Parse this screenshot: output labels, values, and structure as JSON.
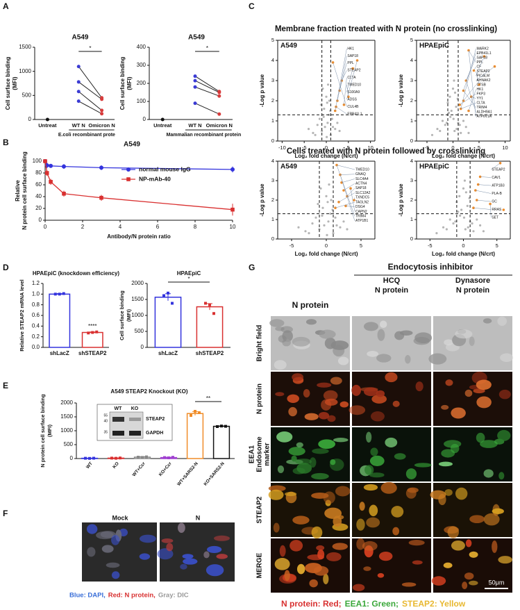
{
  "panel_labels": [
    "A",
    "B",
    "C",
    "D",
    "E",
    "F",
    "G"
  ],
  "panel_a": {
    "charts": [
      {
        "title": "A549",
        "y_label": [
          "Cell surface binding",
          "(MFI)"
        ],
        "ylim": [
          0,
          1500
        ],
        "yticks": [
          0,
          500,
          1000,
          1500
        ],
        "categories": [
          "Untreat",
          "WT N",
          "Omicron N"
        ],
        "colors": [
          "#111111",
          "#3b3bd4",
          "#d83c3c"
        ],
        "untreated": 0,
        "wt": [
          1100,
          780,
          580,
          380
        ],
        "omicron": [
          450,
          420,
          190,
          120
        ],
        "significance": "*",
        "group_label": "E.coli recombinant prote"
      },
      {
        "title": "A549",
        "y_label": [
          "Cell surface binding",
          "(MFI)"
        ],
        "ylim": [
          0,
          400
        ],
        "yticks": [
          0,
          100,
          200,
          300,
          400
        ],
        "categories": [
          "Untreat",
          "WT N",
          "Omicron N"
        ],
        "colors": [
          "#111111",
          "#3b3bd4",
          "#d83c3c"
        ],
        "untreated": 0,
        "wt": [
          240,
          215,
          180,
          90
        ],
        "omicron": [
          155,
          150,
          130,
          30
        ],
        "significance": "*",
        "group_label": "Mammalian recombinant protein"
      }
    ]
  },
  "panel_b": {
    "title": "A549",
    "y_label": [
      "Relative",
      "N protein cell surface binding"
    ],
    "x_label": "Antibody/N protein ratio",
    "xlim": [
      0,
      10
    ],
    "xticks": [
      0,
      2,
      4,
      6,
      8,
      10
    ],
    "ylim": [
      0,
      100
    ],
    "yticks": [
      0,
      20,
      40,
      60,
      80,
      100
    ],
    "x": [
      0,
      0.1,
      0.3,
      1,
      3,
      10
    ],
    "series": [
      {
        "name": "normal mouse IgG",
        "color": "#3333dd",
        "values": [
          100,
          93,
          92,
          91,
          89,
          86
        ],
        "errors": [
          3,
          5,
          3,
          4,
          4,
          5
        ]
      },
      {
        "name": "NP-mAb-40",
        "color": "#d93030",
        "values": [
          100,
          80,
          65,
          45,
          38,
          18
        ],
        "errors": [
          3,
          5,
          5,
          5,
          5,
          10
        ]
      }
    ]
  },
  "panel_c": {
    "gray": "#b5b5b5",
    "orange": "#f08c28",
    "rows": [
      {
        "title": "Membrane fraction treated with N protein (no crosslinking)",
        "plots": [
          {
            "title": "A549",
            "x_label": "Log₂ fold change (N/crt)",
            "y_label": "-Log p value",
            "xlim": [
              -11,
              11
            ],
            "xticks": [
              -10,
              -5,
              0,
              5,
              10
            ],
            "ylim": [
              0,
              5
            ],
            "yticks": [
              0,
              1,
              2,
              3,
              4,
              5
            ],
            "thresholds": {
              "x": [
                -1,
                1
              ],
              "y": 1.3
            },
            "gray_x": [
              -3,
              -2,
              -1.5,
              -1,
              -0.5,
              0,
              0.3,
              0.6,
              1,
              1.5,
              2,
              -0.8,
              0.2,
              0.9,
              -2.5,
              2.5,
              -1.2,
              0.4,
              -0.3,
              1.3,
              3,
              -4,
              0.1,
              -0.6,
              0.7
            ],
            "gray_y": [
              0.4,
              0.8,
              1.1,
              0.5,
              1.6,
              2.2,
              0.9,
              1.3,
              0.3,
              0.7,
              0.6,
              2.6,
              1.9,
              1.5,
              0.3,
              0.9,
              1.8,
              2.8,
              0.7,
              1.1,
              0.5,
              0.6,
              0.2,
              1.2,
              2.0
            ],
            "orange_x": [
              2,
              2.5,
              3,
              3.5,
              4,
              5,
              6,
              7,
              1.5,
              2.2
            ],
            "orange_y": [
              1.5,
              2,
              2.5,
              3,
              1.8,
              2.2,
              3.6,
              4,
              3.9,
              1.7
            ],
            "genes": [
              "HK1",
              "SAP18",
              "PPL",
              "STEAP2",
              "CLTA",
              "TMED10",
              "S100A9",
              "ADSS",
              "CUL4B",
              "EPB41L1"
            ]
          },
          {
            "title": "HPAEpiC",
            "x_label": "Log₂ fold change (N/crt)",
            "y_label": "-Log p value",
            "xlim": [
              -7,
              11
            ],
            "xticks": [
              -5,
              0,
              5,
              10
            ],
            "ylim": [
              0,
              5
            ],
            "yticks": [
              0,
              1,
              2,
              3,
              4,
              5
            ],
            "thresholds": {
              "x": [
                -1,
                1
              ],
              "y": 1.3
            },
            "gray_x": [
              -3,
              -2,
              -1.5,
              -1,
              -0.5,
              0,
              0.3,
              0.6,
              1,
              1.5,
              2,
              -0.8,
              0.2,
              0.9,
              -2.5,
              2.5,
              -1.2,
              0.4,
              -0.3,
              1.3,
              3,
              -4,
              0.1,
              -0.6,
              0.7
            ],
            "gray_y": [
              0.6,
              1.0,
              0.8,
              1.9,
              1.2,
              2.6,
              0.5,
              1.7,
              0.9,
              0.4,
              1.0,
              1.4,
              3.0,
              2.1,
              0.5,
              0.7,
              0.9,
              2.4,
              1.5,
              0.8,
              0.4,
              0.3,
              1.1,
              2.2,
              0.6
            ],
            "orange_x": [
              1.5,
              2,
              2.5,
              3,
              4,
              5,
              6,
              8,
              2,
              3,
              1.3,
              3.5
            ],
            "orange_y": [
              1.6,
              2.5,
              3,
              4.5,
              3.5,
              2.8,
              4.2,
              3.7,
              2.0,
              1.5,
              1.8,
              2.2
            ],
            "genes": [
              "MARK2",
              "EPB41L1",
              "SAP18",
              "PPL",
              "CF",
              "STEAP2",
              "PICALM",
              "AHNAK2",
              "CTSB",
              "HK1",
              "FKP3",
              "YY1",
              "CLTA",
              "TRIM4",
              "ALDH9A1",
              "ATP6V1A"
            ]
          }
        ]
      },
      {
        "title": "Cells treated with N protein followed by crosslinking",
        "plots": [
          {
            "title": "A549",
            "x_label": "Log₂ fold change (N/crt)",
            "y_label": "-Log p value",
            "xlim": [
              -7,
              7
            ],
            "xticks": [
              -5,
              0,
              5
            ],
            "ylim": [
              0,
              4
            ],
            "yticks": [
              0,
              1,
              2,
              3,
              4
            ],
            "thresholds": {
              "x": [
                -1,
                1
              ],
              "y": 1.3
            },
            "gray_x": [
              -3,
              -2,
              -1.5,
              -1,
              -0.5,
              0,
              0.3,
              0.6,
              1,
              1.5,
              2,
              -0.8,
              0.2,
              0.9,
              -2.5,
              2.5,
              -1.2,
              0.4,
              -0.3,
              1.3,
              3,
              -4,
              0.1,
              -0.6,
              0.7
            ],
            "gray_y": [
              0.4,
              0.8,
              1.1,
              0.5,
              1.6,
              2.2,
              0.9,
              1.3,
              0.3,
              0.7,
              0.6,
              2.6,
              1.9,
              1.5,
              0.3,
              0.9,
              1.8,
              2.8,
              0.7,
              1.1,
              0.5,
              0.6,
              0.2,
              1.2,
              2.0
            ],
            "orange_x": [
              1.5,
              2,
              2.2,
              2.5,
              3,
              1.8,
              4,
              1.3,
              2.8,
              3.5
            ],
            "orange_y": [
              3.8,
              3.3,
              2.9,
              2.5,
              2.2,
              1.9,
              2.0,
              1.6,
              1.7,
              2.6
            ],
            "genes": [
              "TMED10",
              "GNAQ",
              "SLC4A4",
              "ACTN4",
              "SAP18",
              "SLC12A2",
              "TXNDC5",
              "TAGLN2",
              "DSG4",
              "CAPN2",
              "TRIM4",
              "ATP1B1"
            ]
          },
          {
            "title": "HPAEpiC",
            "x_label": "Log₂ fold change (N/crt)",
            "y_label": "-Log p value",
            "xlim": [
              -7,
              7
            ],
            "xticks": [
              -5,
              0,
              5
            ],
            "ylim": [
              0,
              4
            ],
            "yticks": [
              0,
              1,
              2,
              3,
              4
            ],
            "thresholds": {
              "x": [
                -1,
                1
              ],
              "y": 1.3
            },
            "gray_x": [
              -3,
              -2,
              -1.5,
              -1,
              -0.5,
              0,
              0.3,
              0.6,
              1,
              1.5,
              2,
              -0.8,
              0.2,
              0.9,
              -2.5,
              2.5,
              -1.2,
              0.4,
              -0.3,
              1.3,
              3,
              -4,
              0.1,
              -0.6,
              0.7
            ],
            "gray_y": [
              0.6,
              1.0,
              0.8,
              1.9,
              1.2,
              2.6,
              0.5,
              1.7,
              0.9,
              0.4,
              1.0,
              1.4,
              3.0,
              2.1,
              0.5,
              0.7,
              0.9,
              2.4,
              1.5,
              0.8,
              0.4,
              0.3,
              1.1,
              2.2,
              0.6
            ],
            "orange_x": [
              5.5,
              2.5,
              2.2,
              1.8,
              2,
              1.5,
              4,
              6
            ],
            "orange_y": [
              3.9,
              3.2,
              2.8,
              2.5,
              2.0,
              1.6,
              1.8,
              1.5
            ],
            "genes": [
              "STEAP2",
              "CAV1",
              "ATP1B3",
              "PLA-B",
              "GC",
              "RRAS",
              "SET"
            ]
          }
        ]
      }
    ]
  },
  "panel_d": {
    "charts": [
      {
        "title": "HPAEpiC (knockdown efficiency)",
        "y_label": [
          "Relative STEAP2 mRNA level"
        ],
        "ylim": [
          0,
          1.2
        ],
        "yticks": [
          {
            "value": 0,
            "label": "0.0"
          },
          0.2,
          0.4,
          0.6,
          0.8,
          {
            "value": 1,
            "label": "1.0"
          },
          1.2
        ],
        "categories": [
          "shLacZ",
          "shSTEAP2"
        ],
        "colors": [
          "#3333dd",
          "#d93030"
        ],
        "values": [
          1.0,
          0.28
        ],
        "errors": [
          0.01,
          0.01
        ],
        "points": [
          [
            1.0,
            1.0,
            1.01
          ],
          [
            0.27,
            0.28,
            0.29
          ]
        ],
        "significance": "****",
        "significance_bar": false
      },
      {
        "title": "HPAEpiC",
        "y_label": [
          "Cell surface binding",
          "(MFI)"
        ],
        "ylim": [
          0,
          2000
        ],
        "yticks": [
          0,
          500,
          1000,
          1500,
          2000
        ],
        "categories": [
          "shLacZ",
          "shSTEAP2"
        ],
        "colors": [
          "#3333dd",
          "#d93030"
        ],
        "values": [
          1570,
          1270
        ],
        "errors": [
          110,
          100
        ],
        "points": [
          [
            1620,
            1700,
            1380
          ],
          [
            1380,
            1330,
            1060
          ]
        ],
        "significance": "*",
        "significance_bar": true
      }
    ]
  },
  "panel_e": {
    "title": "A549 STEAP2 Knockout (KO)",
    "y_label": [
      "N protein cell surface binding",
      "(MFI)"
    ],
    "ylim": [
      0,
      2000
    ],
    "yticks": [
      0,
      500,
      1000,
      1500,
      2000
    ],
    "categories": [
      "WT",
      "KO",
      "WT+Ccr",
      "KO+Ccr",
      "WT+SARS2-N",
      "KO+SARS2-N"
    ],
    "colors": [
      "#3333dd",
      "#d93030",
      "#888888",
      "#a040d0",
      "#f08c28",
      "#111111"
    ],
    "values": [
      10,
      15,
      50,
      35,
      1620,
      1160
    ],
    "errors": [
      5,
      5,
      20,
      15,
      70,
      15
    ],
    "points": [
      [
        10,
        5,
        12
      ],
      [
        15,
        10,
        20
      ],
      [
        50,
        40,
        60
      ],
      [
        35,
        25,
        45
      ],
      [
        1550,
        1700,
        1650
      ],
      [
        1150,
        1170,
        1160
      ]
    ],
    "significance": "**",
    "significance_bar": true,
    "blot": {
      "lanes": [
        "WT",
        "KO"
      ],
      "markers": [
        55,
        40,
        35
      ],
      "bands": [
        "STEAP2",
        "GAPDH"
      ]
    }
  },
  "panel_f": {
    "images": [
      "Mock",
      "N"
    ],
    "legend": [
      {
        "text": "Blue: DAPI,",
        "color": "#3a6fd8"
      },
      {
        "text": "Red: N protein,",
        "color": "#d83030"
      },
      {
        "text": "Gray: DIC",
        "color": "#999999"
      }
    ]
  },
  "panel_g": {
    "header": "Endocytosis inhibitor",
    "treatments": [
      "HCQ",
      "Dynasore"
    ],
    "columns": [
      "N protein",
      "N protein",
      "N protein"
    ],
    "rows": [
      [
        "Bright field"
      ],
      [
        "N protein"
      ],
      [
        "EEA1",
        "Endosome",
        "marker"
      ],
      [
        "STEAP2"
      ],
      [
        "MERGE"
      ]
    ],
    "scale_bar": "50μm",
    "legend": [
      {
        "text": "N protein: Red;",
        "color": "#d83030"
      },
      {
        "text": "EEA1: Green;",
        "color": "#3aa83a"
      },
      {
        "text": "STEAP2: Yellow",
        "color": "#e8b830"
      }
    ]
  }
}
